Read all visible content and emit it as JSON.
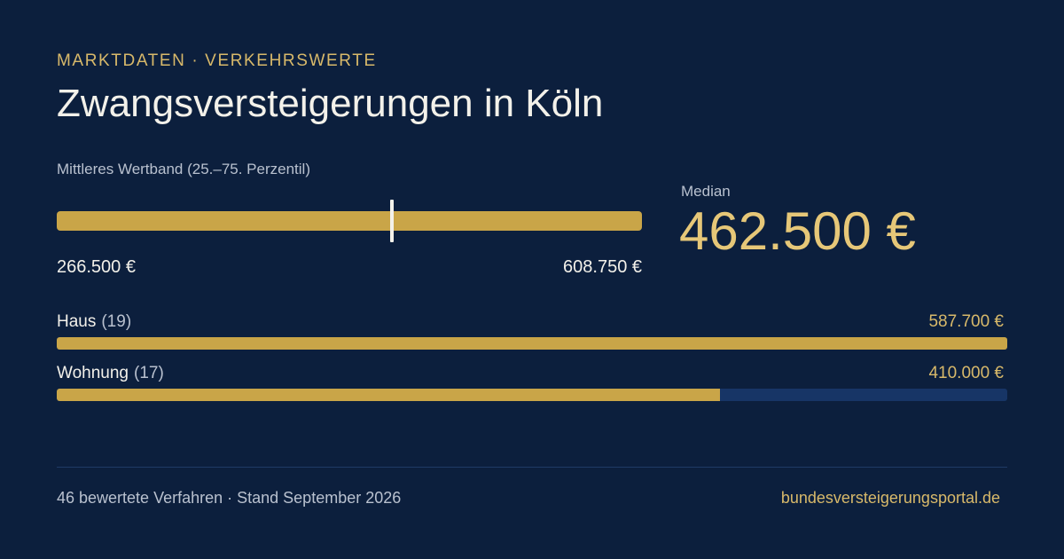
{
  "header": {
    "kicker": "MARKTDATEN · VERKEHRSWERTE",
    "title": "Zwangsversteigerungen in Köln"
  },
  "band": {
    "label": "Mittleres Wertband (25.–75. Perzentil)",
    "min_label": "266.500 €",
    "max_label": "608.750 €",
    "min_value": 266500,
    "max_value": 608750
  },
  "median": {
    "label": "Median",
    "value_label": "462.500 €",
    "value": 462500
  },
  "rows": [
    {
      "name": "Haus",
      "count": "(19)",
      "value_label": "587.700 €",
      "value": 587700,
      "fill_fraction": 1.0
    },
    {
      "name": "Wohnung",
      "count": "(17)",
      "value_label": "410.000 €",
      "value": 410000,
      "fill_fraction": 0.698
    }
  ],
  "footer": {
    "left": "46 bewertete Verfahren · Stand September 2026",
    "right": "bundesversteigerungsportal.de"
  },
  "colors": {
    "background": "#0c1f3d",
    "accent_gold": "#c9a548",
    "accent_text": "#e6c778",
    "track_blue": "#173566"
  }
}
